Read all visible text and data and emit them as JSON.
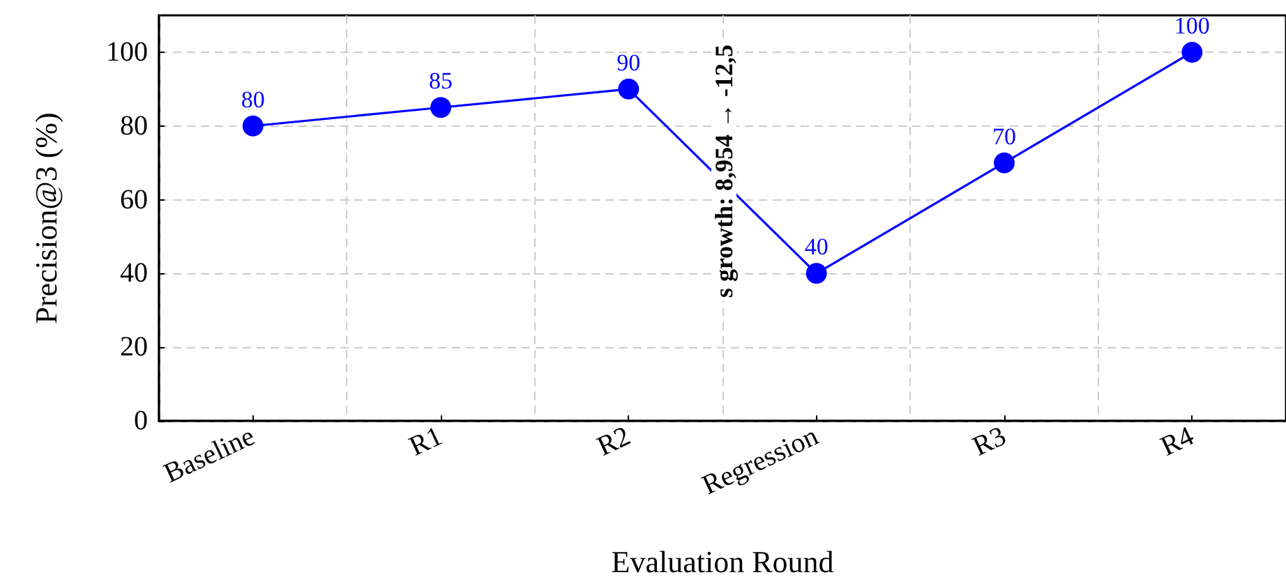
{
  "chart_data": {
    "type": "line",
    "xlabel": "Evaluation Round",
    "ylabel": "Precision@3 (%)",
    "categories": [
      "Baseline",
      "R1",
      "R2",
      "Regression",
      "R3",
      "R4"
    ],
    "series": [
      {
        "color": "#0000ff",
        "values": [
          80,
          85,
          90,
          40,
          70,
          100
        ]
      }
    ],
    "ylim": [
      0,
      110
    ],
    "yticks": [
      0,
      20,
      40,
      60,
      80,
      100
    ],
    "grid": true,
    "marker": "circle",
    "line_style": "solid",
    "data_labels": true,
    "annotations": [
      "s growth: 8,954 → -12,5"
    ]
  }
}
